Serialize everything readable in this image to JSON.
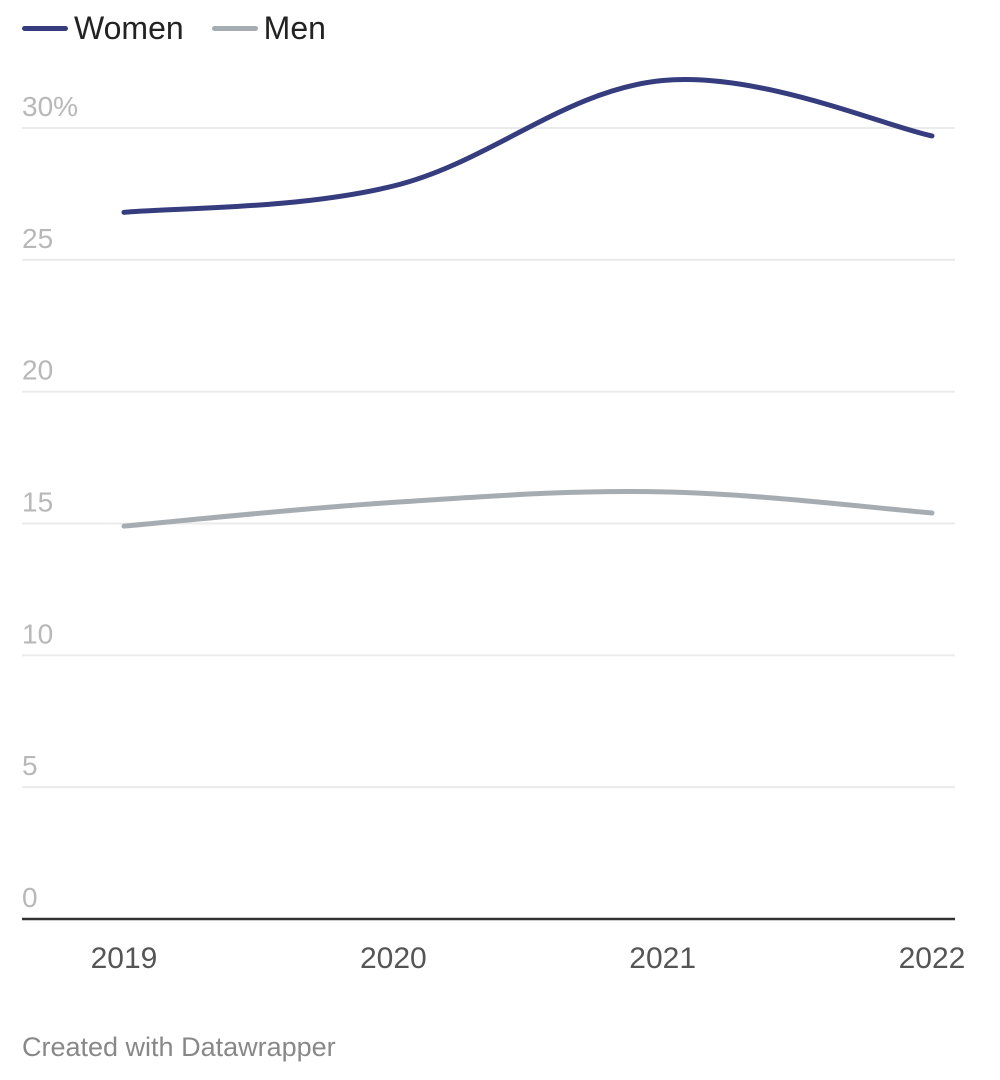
{
  "chart_data": {
    "type": "line",
    "x": [
      "2019",
      "2020",
      "2021",
      "2022"
    ],
    "series": [
      {
        "name": "Women",
        "color": "#353d7e",
        "values": [
          26.8,
          27.8,
          31.8,
          29.7
        ]
      },
      {
        "name": "Men",
        "color": "#a6adb2",
        "values": [
          14.9,
          15.8,
          16.2,
          15.4
        ]
      }
    ],
    "yticks": [
      {
        "value": 0,
        "label": "0"
      },
      {
        "value": 5,
        "label": "5"
      },
      {
        "value": 10,
        "label": "10"
      },
      {
        "value": 15,
        "label": "15"
      },
      {
        "value": 20,
        "label": "20"
      },
      {
        "value": 25,
        "label": "25"
      },
      {
        "value": 30,
        "label": "30%"
      }
    ],
    "ylim": [
      0,
      30
    ],
    "grid": true,
    "legend_position": "top-left",
    "line_style": "smooth"
  },
  "footer": {
    "credit": "Created with Datawrapper"
  },
  "colors": {
    "gridline": "#ebebeb",
    "baseline": "#333333",
    "ytick_text": "#b8b8b8",
    "xtick_text": "#555555"
  }
}
